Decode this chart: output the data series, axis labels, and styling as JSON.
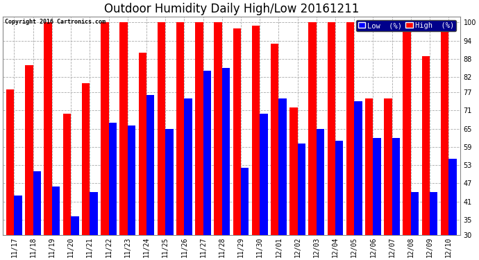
{
  "title": "Outdoor Humidity Daily High/Low 20161211",
  "copyright": "Copyright 2016 Cartronics.com",
  "legend_low": "Low  (%)",
  "legend_high": "High  (%)",
  "categories": [
    "11/17",
    "11/18",
    "11/19",
    "11/20",
    "11/21",
    "11/22",
    "11/23",
    "11/24",
    "11/25",
    "11/26",
    "11/27",
    "11/28",
    "11/29",
    "11/30",
    "12/01",
    "12/02",
    "12/03",
    "12/04",
    "12/05",
    "12/06",
    "12/07",
    "12/08",
    "12/09",
    "12/10"
  ],
  "high_values": [
    78,
    86,
    100,
    70,
    80,
    100,
    100,
    90,
    100,
    100,
    100,
    100,
    98,
    99,
    93,
    72,
    100,
    100,
    100,
    75,
    75,
    100,
    89,
    100
  ],
  "low_values": [
    43,
    51,
    46,
    36,
    44,
    67,
    66,
    76,
    65,
    75,
    84,
    85,
    52,
    70,
    75,
    60,
    65,
    61,
    74,
    62,
    62,
    44,
    44,
    55
  ],
  "ylim_min": 30,
  "ylim_max": 100,
  "yticks": [
    30,
    35,
    41,
    47,
    53,
    59,
    65,
    71,
    77,
    82,
    88,
    94,
    100
  ],
  "high_color": "#ff0000",
  "low_color": "#0000ff",
  "grid_color": "#aaaaaa",
  "bg_color": "#ffffff",
  "title_fontsize": 12,
  "tick_fontsize": 7,
  "legend_fontsize": 7.5,
  "legend_bg": "#00008b",
  "border_color": "#888888"
}
